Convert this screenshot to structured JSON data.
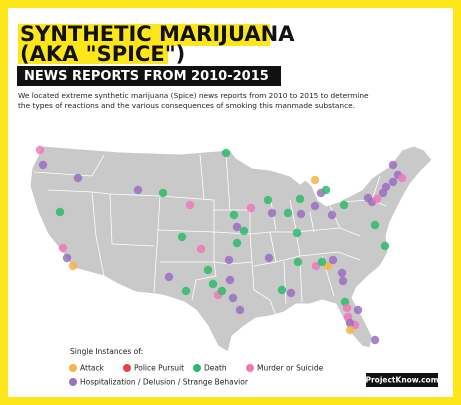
{
  "header": {
    "title_lines": [
      "SYNTHETIC MARIJUANA",
      "(AKA \"SPICE\")"
    ],
    "subtitle": "NEWS REPORTS FROM 2010-2015",
    "description_lines": [
      "We located extreme synthetic marijuana (Spice) news reports from 2010 to 2015 to determine",
      "the types of reactions and the various consequences of smoking this manmade substance."
    ]
  },
  "legend": {
    "title": "Single Instances of:",
    "items": [
      {
        "label": "Attack",
        "color": "#f3b64a"
      },
      {
        "label": "Police Pursuit",
        "color": "#e8414a"
      },
      {
        "label": "Death",
        "color": "#2dbb6b"
      },
      {
        "label": "Murder or Suicide",
        "color": "#ef79b8"
      },
      {
        "label": "Hospitalization / Delusion / Strange Behavior",
        "color": "#9b6fc2"
      }
    ]
  },
  "footer": {
    "source": "ProjectKnow.com"
  }
}
